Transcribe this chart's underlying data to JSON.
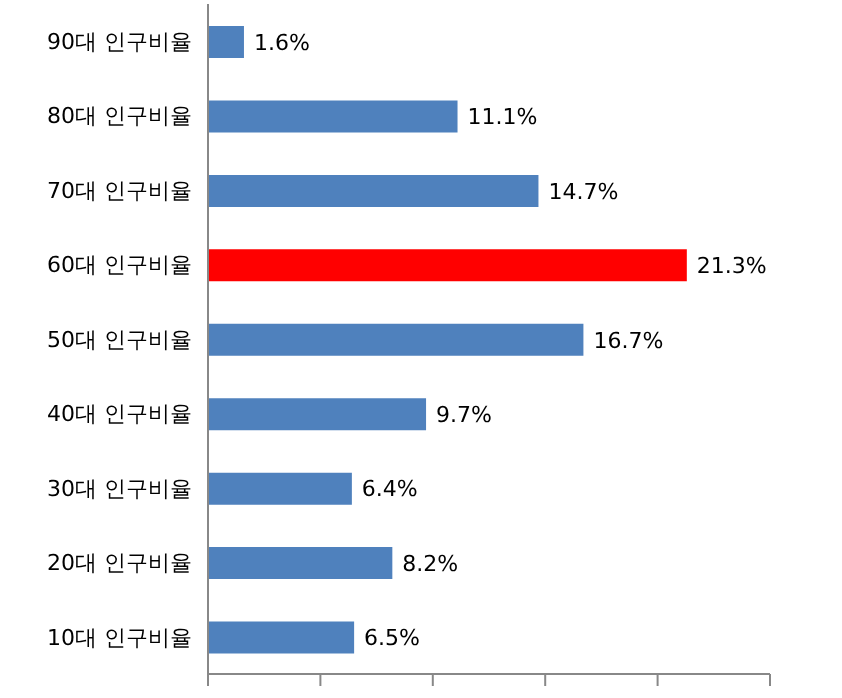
{
  "chart_data": {
    "type": "bar",
    "orientation": "horizontal",
    "categories": [
      "90대 인구비율",
      "80대 인구비율",
      "70대 인구비율",
      "60대 인구비율",
      "50대 인구비율",
      "40대 인구비율",
      "30대 인구비율",
      "20대 인구비율",
      "10대 인구비율"
    ],
    "values": [
      1.6,
      11.1,
      14.7,
      21.3,
      16.7,
      9.7,
      6.4,
      8.2,
      6.5
    ],
    "value_labels": [
      "1.6%",
      "11.1%",
      "14.7%",
      "21.3%",
      "16.7%",
      "9.7%",
      "6.4%",
      "8.2%",
      "6.5%"
    ],
    "colors": [
      "#4f81bd",
      "#4f81bd",
      "#4f81bd",
      "#ff0000",
      "#4f81bd",
      "#4f81bd",
      "#4f81bd",
      "#4f81bd",
      "#4f81bd"
    ],
    "xlim": [
      0,
      25
    ],
    "xticks": [
      {
        "value": 0,
        "label": null
      },
      {
        "value": 5,
        "label": null
      },
      {
        "value": 10,
        "label": null
      },
      {
        "value": 15,
        "label": null
      },
      {
        "value": 20,
        "label": null
      },
      {
        "value": 25,
        "label": null
      }
    ],
    "tick_labels": "y",
    "grid": false
  }
}
